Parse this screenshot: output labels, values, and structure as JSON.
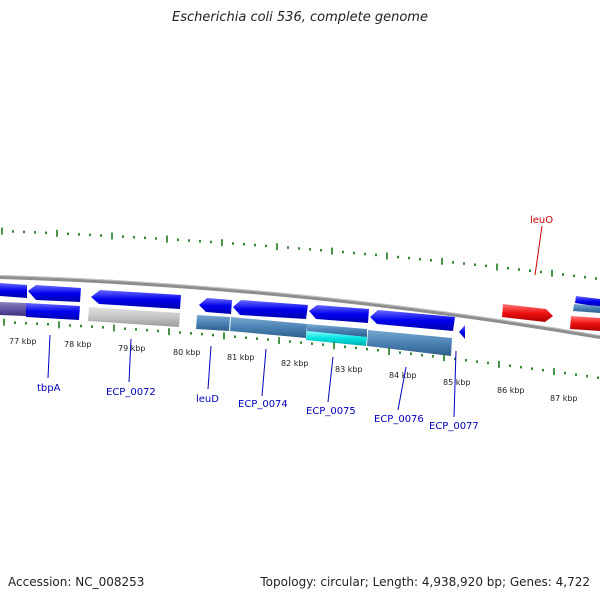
{
  "title": "Escherichia coli 536, complete genome",
  "footer": {
    "accession": "Accession: NC_008253",
    "summary": "Topology: circular; Length: 4,938,920 bp; Genes: 4,722"
  },
  "colors": {
    "forward_gene": "#ee1111",
    "reverse_gene": "#0000ee",
    "reverse_cds": "#4a82b4",
    "highlight_cds": "#00dddd",
    "pseudo": "#bbbbbb",
    "tick": "#1a7a1a",
    "backbone": "#888888",
    "forward_label": "#cc0000",
    "reverse_label": "#0000bb"
  },
  "scale": {
    "unit": "kbp",
    "labels": [
      {
        "kbp": 77,
        "text": "77 kbp"
      },
      {
        "kbp": 78,
        "text": "78 kbp"
      },
      {
        "kbp": 79,
        "text": "79 kbp"
      },
      {
        "kbp": 80,
        "text": "80 kbp"
      },
      {
        "kbp": 81,
        "text": "81 kbp"
      },
      {
        "kbp": 82,
        "text": "82 kbp"
      },
      {
        "kbp": 83,
        "text": "83 kbp"
      },
      {
        "kbp": 84,
        "text": "84 kbp"
      },
      {
        "kbp": 85,
        "text": "85 kbp"
      },
      {
        "kbp": 86,
        "text": "86 kbp"
      },
      {
        "kbp": 87,
        "text": "87 kbp"
      }
    ]
  },
  "labels": [
    {
      "text": "leuO",
      "strand": "forward"
    },
    {
      "text": "tbpA",
      "strand": "reverse"
    },
    {
      "text": "ECP_0072",
      "strand": "reverse"
    },
    {
      "text": "leuD",
      "strand": "reverse"
    },
    {
      "text": "ECP_0074",
      "strand": "reverse"
    },
    {
      "text": "ECP_0075",
      "strand": "reverse"
    },
    {
      "text": "ECP_0076",
      "strand": "reverse"
    },
    {
      "text": "ECP_0077",
      "strand": "reverse"
    }
  ]
}
